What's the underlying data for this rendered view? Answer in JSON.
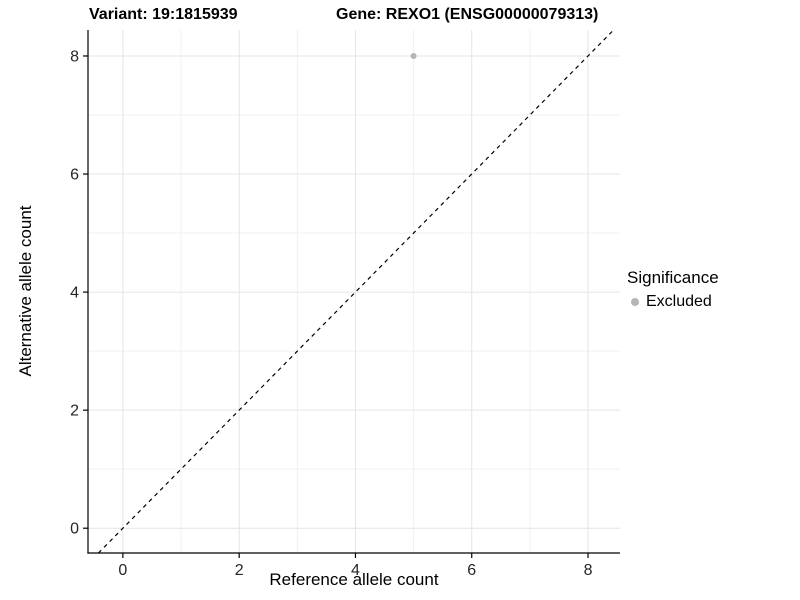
{
  "titles": {
    "left": "Variant: 19:1815939",
    "right": "Gene: REXO1 (ENSG00000079313)"
  },
  "colors": {
    "background": "#ffffff",
    "grid_major": "#e4e4e4",
    "grid_minor": "#f0f0f0",
    "axis": "#000000",
    "tick_label": "#262626",
    "point": "#b5b5b5",
    "dashed_line": "#000000"
  },
  "chart_data": {
    "type": "scatter",
    "title_left": "Variant: 19:1815939",
    "title_right": "Gene: REXO1 (ENSG00000079313)",
    "xlabel": "Reference allele count",
    "ylabel": "Alternative allele count",
    "xlim": [
      -0.6,
      8.55
    ],
    "ylim": [
      -0.42,
      8.44
    ],
    "x_ticks": [
      0,
      2,
      4,
      6,
      8
    ],
    "y_ticks": [
      0,
      2,
      4,
      6,
      8
    ],
    "x_minor": [
      1,
      3,
      5,
      7
    ],
    "y_minor": [
      1,
      3,
      5,
      7
    ],
    "grid": true,
    "legend": {
      "title": "Significance",
      "position": "right",
      "items": [
        {
          "label": "Excluded",
          "color": "#b5b5b5"
        }
      ]
    },
    "series": [
      {
        "name": "Excluded",
        "color": "#b5b5b5",
        "points": [
          {
            "x": 5,
            "y": 8
          }
        ]
      }
    ],
    "reference_line": {
      "type": "identity",
      "slope": 1,
      "intercept": 0,
      "style": "dashed",
      "color": "#000000"
    }
  }
}
